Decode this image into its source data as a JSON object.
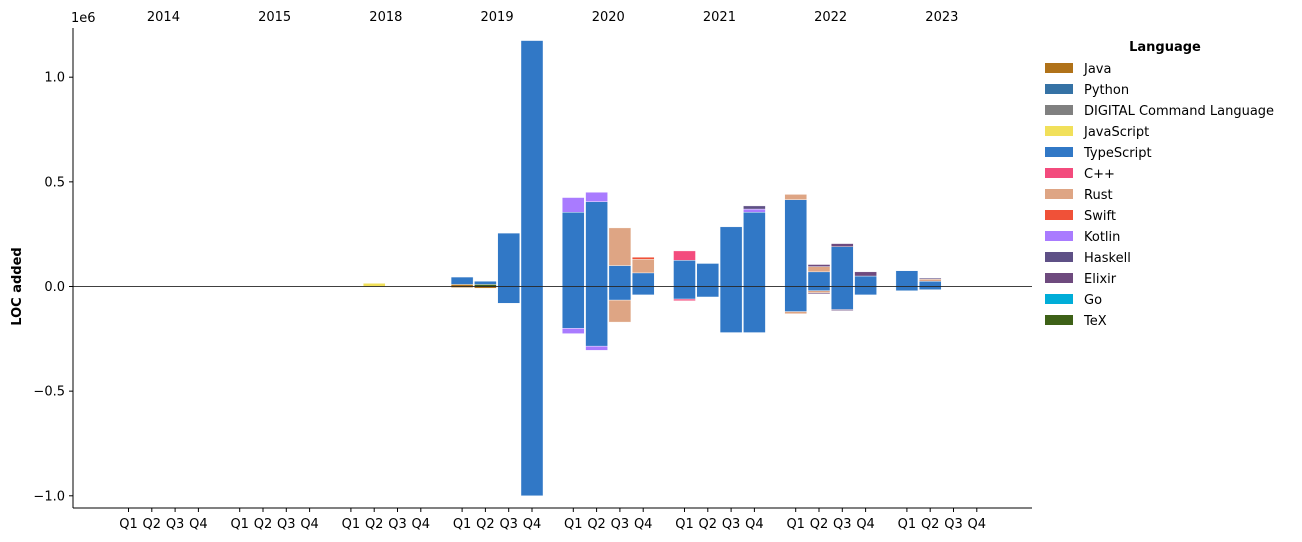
{
  "chart_data": {
    "type": "bar",
    "stacked": true,
    "diverging": true,
    "ylabel": "LOC added",
    "offset_label": "1e6",
    "y_scale": 1000000,
    "ylim": [
      -1.05,
      1.23
    ],
    "yticks": [
      -1.0,
      -0.5,
      0.0,
      0.5,
      1.0
    ],
    "ytick_labels": [
      "−1.0",
      "−0.5",
      "0.0",
      "0.5",
      "1.0"
    ],
    "grid": false,
    "zero_line": true,
    "legend": {
      "title": "Language",
      "placement": "right"
    },
    "years": [
      "2014",
      "2015",
      "2018",
      "2019",
      "2020",
      "2021",
      "2022",
      "2023"
    ],
    "quarters": [
      "Q1",
      "Q2",
      "Q3",
      "Q4"
    ],
    "languages": [
      {
        "name": "Java",
        "color": "#b07219"
      },
      {
        "name": "Python",
        "color": "#3572a5"
      },
      {
        "name": "DIGITAL Command Language",
        "color": "#808080"
      },
      {
        "name": "JavaScript",
        "color": "#f1e05a"
      },
      {
        "name": "TypeScript",
        "color": "#3178c6"
      },
      {
        "name": "C++",
        "color": "#f34b7d"
      },
      {
        "name": "Rust",
        "color": "#dea584"
      },
      {
        "name": "Swift",
        "color": "#f05138"
      },
      {
        "name": "Kotlin",
        "color": "#a97bff"
      },
      {
        "name": "Haskell",
        "color": "#5e5086"
      },
      {
        "name": "Elixir",
        "color": "#6e4a7e"
      },
      {
        "name": "Go",
        "color": "#00add8"
      },
      {
        "name": "TeX",
        "color": "#3d6117"
      }
    ],
    "bars": [
      {
        "year": "2018",
        "quarter": "Q2",
        "pos": [
          {
            "lang": "JavaScript",
            "v": 0.015
          }
        ],
        "neg": []
      },
      {
        "year": "2019",
        "quarter": "Q1",
        "pos": [
          {
            "lang": "Java",
            "v": 0.01
          },
          {
            "lang": "TypeScript",
            "v": 0.035
          }
        ],
        "neg": [
          {
            "lang": "Java",
            "v": 0.005
          }
        ]
      },
      {
        "year": "2019",
        "quarter": "Q2",
        "pos": [
          {
            "lang": "TeX",
            "v": 0.01
          },
          {
            "lang": "TypeScript",
            "v": 0.015
          }
        ],
        "neg": [
          {
            "lang": "Java",
            "v": 0.008
          }
        ]
      },
      {
        "year": "2019",
        "quarter": "Q3",
        "pos": [
          {
            "lang": "TypeScript",
            "v": 0.255
          }
        ],
        "neg": [
          {
            "lang": "TypeScript",
            "v": 0.08
          }
        ]
      },
      {
        "year": "2019",
        "quarter": "Q4",
        "pos": [
          {
            "lang": "TypeScript",
            "v": 1.175
          }
        ],
        "neg": [
          {
            "lang": "TypeScript",
            "v": 1.0
          }
        ]
      },
      {
        "year": "2020",
        "quarter": "Q1",
        "pos": [
          {
            "lang": "TypeScript",
            "v": 0.355
          },
          {
            "lang": "Kotlin",
            "v": 0.07
          }
        ],
        "neg": [
          {
            "lang": "TypeScript",
            "v": 0.2
          },
          {
            "lang": "Kotlin",
            "v": 0.025
          }
        ]
      },
      {
        "year": "2020",
        "quarter": "Q2",
        "pos": [
          {
            "lang": "TypeScript",
            "v": 0.405
          },
          {
            "lang": "Kotlin",
            "v": 0.045
          }
        ],
        "neg": [
          {
            "lang": "TypeScript",
            "v": 0.285
          },
          {
            "lang": "Kotlin",
            "v": 0.02
          }
        ]
      },
      {
        "year": "2020",
        "quarter": "Q3",
        "pos": [
          {
            "lang": "TypeScript",
            "v": 0.1
          },
          {
            "lang": "Rust",
            "v": 0.18
          }
        ],
        "neg": [
          {
            "lang": "TypeScript",
            "v": 0.065
          },
          {
            "lang": "Rust",
            "v": 0.105
          }
        ]
      },
      {
        "year": "2020",
        "quarter": "Q4",
        "pos": [
          {
            "lang": "TypeScript",
            "v": 0.065
          },
          {
            "lang": "Rust",
            "v": 0.065
          },
          {
            "lang": "Swift",
            "v": 0.01
          }
        ],
        "neg": [
          {
            "lang": "TypeScript",
            "v": 0.04
          }
        ]
      },
      {
        "year": "2021",
        "quarter": "Q1",
        "pos": [
          {
            "lang": "TypeScript",
            "v": 0.125
          },
          {
            "lang": "C++",
            "v": 0.045
          }
        ],
        "neg": [
          {
            "lang": "TypeScript",
            "v": 0.06
          },
          {
            "lang": "C++",
            "v": 0.008
          }
        ]
      },
      {
        "year": "2021",
        "quarter": "Q2",
        "pos": [
          {
            "lang": "TypeScript",
            "v": 0.11
          }
        ],
        "neg": [
          {
            "lang": "TypeScript",
            "v": 0.05
          }
        ]
      },
      {
        "year": "2021",
        "quarter": "Q3",
        "pos": [
          {
            "lang": "TypeScript",
            "v": 0.285
          }
        ],
        "neg": [
          {
            "lang": "TypeScript",
            "v": 0.22
          }
        ]
      },
      {
        "year": "2021",
        "quarter": "Q4",
        "pos": [
          {
            "lang": "TypeScript",
            "v": 0.355
          },
          {
            "lang": "Kotlin",
            "v": 0.015
          },
          {
            "lang": "Haskell",
            "v": 0.015
          }
        ],
        "neg": [
          {
            "lang": "TypeScript",
            "v": 0.22
          }
        ]
      },
      {
        "year": "2022",
        "quarter": "Q1",
        "pos": [
          {
            "lang": "TypeScript",
            "v": 0.415
          },
          {
            "lang": "Rust",
            "v": 0.025
          }
        ],
        "neg": [
          {
            "lang": "TypeScript",
            "v": 0.12
          },
          {
            "lang": "Rust",
            "v": 0.01
          }
        ]
      },
      {
        "year": "2022",
        "quarter": "Q2",
        "pos": [
          {
            "lang": "TypeScript",
            "v": 0.07
          },
          {
            "lang": "Rust",
            "v": 0.025
          },
          {
            "lang": "Elixir",
            "v": 0.01
          }
        ],
        "neg": [
          {
            "lang": "TypeScript",
            "v": 0.02
          },
          {
            "lang": "Rust",
            "v": 0.01
          },
          {
            "lang": "Elixir",
            "v": 0.005
          }
        ]
      },
      {
        "year": "2022",
        "quarter": "Q3",
        "pos": [
          {
            "lang": "TypeScript",
            "v": 0.19
          },
          {
            "lang": "Elixir",
            "v": 0.015
          }
        ],
        "neg": [
          {
            "lang": "TypeScript",
            "v": 0.11
          },
          {
            "lang": "Elixir",
            "v": 0.005
          }
        ]
      },
      {
        "year": "2022",
        "quarter": "Q4",
        "pos": [
          {
            "lang": "TypeScript",
            "v": 0.05
          },
          {
            "lang": "Elixir",
            "v": 0.02
          }
        ],
        "neg": [
          {
            "lang": "TypeScript",
            "v": 0.04
          }
        ]
      },
      {
        "year": "2023",
        "quarter": "Q1",
        "pos": [
          {
            "lang": "TypeScript",
            "v": 0.075
          }
        ],
        "neg": [
          {
            "lang": "TypeScript",
            "v": 0.02
          }
        ]
      },
      {
        "year": "2023",
        "quarter": "Q2",
        "pos": [
          {
            "lang": "TypeScript",
            "v": 0.025
          },
          {
            "lang": "Rust",
            "v": 0.01
          },
          {
            "lang": "Haskell",
            "v": 0.005
          }
        ],
        "neg": [
          {
            "lang": "TypeScript",
            "v": 0.015
          }
        ]
      }
    ]
  }
}
